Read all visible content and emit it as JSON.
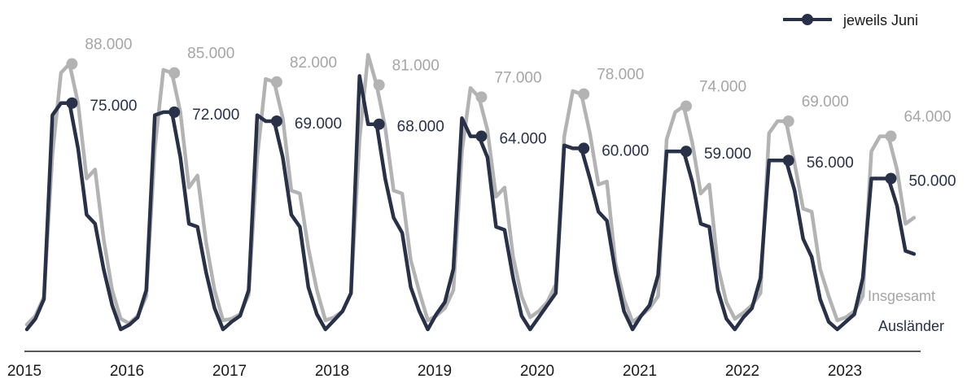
{
  "chart_data": {
    "type": "line",
    "title": "",
    "xlabel": "",
    "ylabel": "",
    "x_ticks": [
      "2015",
      "2016",
      "2017",
      "2018",
      "2019",
      "2020",
      "2021",
      "2022",
      "2023"
    ],
    "ylim": [
      0,
      100000
    ],
    "grid": false,
    "legend": {
      "label": "jeweils Juni",
      "position": "top-right"
    },
    "colors": {
      "insgesamt": "#b3b3b3",
      "auslaender": "#283148",
      "insgesamt_text": "#a6a6a6",
      "axis": "#222222"
    },
    "series": [
      {
        "name": "Insgesamt",
        "label": "Insgesamt",
        "values": [
          1600,
          4500,
          10800,
          58000,
          85000,
          88000,
          75000,
          50000,
          53000,
          30000,
          13000,
          3500,
          2000,
          4500,
          11000,
          60000,
          86000,
          85000,
          72000,
          47000,
          51000,
          29000,
          13000,
          3000,
          3500,
          5000,
          11500,
          57000,
          83000,
          82000,
          70000,
          46000,
          45000,
          27000,
          13000,
          3000,
          4000,
          6000,
          12000,
          63000,
          91000,
          81000,
          67000,
          46000,
          45000,
          23000,
          12500,
          3000,
          4500,
          7000,
          13000,
          59000,
          80000,
          77000,
          66000,
          44000,
          47000,
          24000,
          11000,
          4000,
          6000,
          9000,
          15000,
          64000,
          79000,
          78000,
          65000,
          48000,
          49000,
          22000,
          10000,
          2500,
          4500,
          7000,
          11000,
          63000,
          72000,
          74000,
          62000,
          45000,
          48000,
          21000,
          9000,
          3500,
          5500,
          8000,
          12000,
          65000,
          69000,
          69000,
          55000,
          40000,
          39000,
          20000,
          11000,
          3000,
          4000,
          6000,
          11000,
          59000,
          64000,
          64000,
          53000,
          35000,
          37000
        ]
      },
      {
        "name": "Ausländer",
        "label": "Ausländer",
        "values": [
          0,
          3500,
          10000,
          71000,
          75000,
          75000,
          60000,
          38000,
          35000,
          20000,
          8000,
          0,
          1500,
          4000,
          13000,
          71000,
          72000,
          72000,
          57000,
          35000,
          34000,
          19000,
          7000,
          0,
          2500,
          4500,
          13000,
          71000,
          69000,
          69000,
          57000,
          38000,
          34000,
          14000,
          5000,
          0,
          3000,
          6000,
          12000,
          84000,
          68000,
          68000,
          50000,
          37000,
          32000,
          14000,
          6000,
          0,
          5000,
          9000,
          20000,
          70000,
          64000,
          64000,
          57000,
          34000,
          33000,
          17000,
          4500,
          0,
          4000,
          8000,
          12000,
          61000,
          60000,
          60000,
          50000,
          39000,
          36000,
          19000,
          6000,
          0,
          4500,
          8000,
          18000,
          59000,
          59000,
          59000,
          49000,
          35000,
          34000,
          13000,
          3500,
          0,
          4000,
          7000,
          17000,
          56000,
          56000,
          56000,
          46000,
          30000,
          24000,
          10000,
          2500,
          0,
          2500,
          5000,
          17000,
          50000,
          50000,
          50000,
          41000,
          26000,
          25000
        ]
      }
    ],
    "x_start": "2015-01",
    "frequency": "monthly",
    "june_markers": [
      {
        "year": "2015",
        "insgesamt": 88000,
        "insgesamt_label": "88.000",
        "auslaender": 75000,
        "auslaender_label": "75.000"
      },
      {
        "year": "2016",
        "insgesamt": 85000,
        "insgesamt_label": "85.000",
        "auslaender": 72000,
        "auslaender_label": "72.000"
      },
      {
        "year": "2017",
        "insgesamt": 82000,
        "insgesamt_label": "82.000",
        "auslaender": 69000,
        "auslaender_label": "69.000"
      },
      {
        "year": "2018",
        "insgesamt": 81000,
        "insgesamt_label": "81.000",
        "auslaender": 68000,
        "auslaender_label": "68.000"
      },
      {
        "year": "2019",
        "insgesamt": 77000,
        "insgesamt_label": "77.000",
        "auslaender": 64000,
        "auslaender_label": "64.000"
      },
      {
        "year": "2020",
        "insgesamt": 78000,
        "insgesamt_label": "78.000",
        "auslaender": 60000,
        "auslaender_label": "60.000"
      },
      {
        "year": "2021",
        "insgesamt": 74000,
        "insgesamt_label": "74.000",
        "auslaender": 59000,
        "auslaender_label": "59.000"
      },
      {
        "year": "2022",
        "insgesamt": 69000,
        "insgesamt_label": "69.000",
        "auslaender": 56000,
        "auslaender_label": "56.000"
      },
      {
        "year": "2023",
        "insgesamt": 64000,
        "insgesamt_label": "64.000",
        "auslaender": 50000,
        "auslaender_label": "50.000"
      }
    ]
  }
}
